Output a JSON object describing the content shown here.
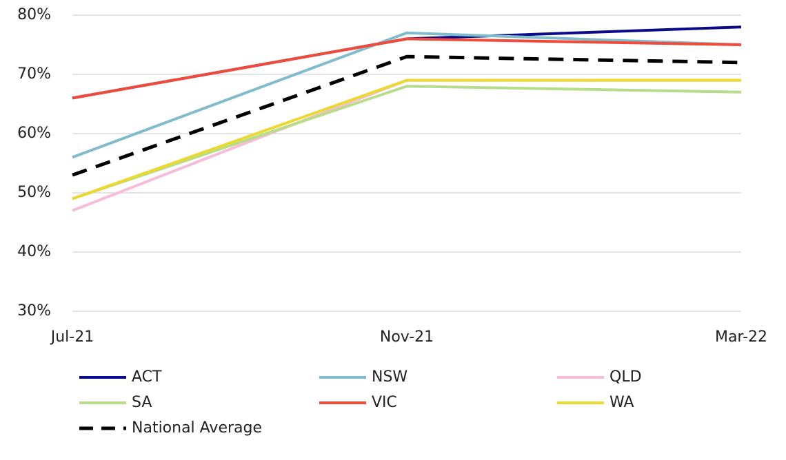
{
  "chart_data": {
    "type": "line",
    "categories": [
      "Jul-21",
      "Nov-21",
      "Mar-22"
    ],
    "series": [
      {
        "name": "ACT",
        "color": "#0b0b8a",
        "values": [
          66,
          76,
          78
        ]
      },
      {
        "name": "NSW",
        "color": "#80bccb",
        "values": [
          56,
          77,
          75
        ]
      },
      {
        "name": "QLD",
        "color": "#f6bcd9",
        "values": [
          47,
          69,
          69
        ]
      },
      {
        "name": "SA",
        "color": "#b7dc8c",
        "values": [
          49,
          68,
          67
        ]
      },
      {
        "name": "VIC",
        "color": "#ef4a3a",
        "values": [
          66,
          76,
          75
        ]
      },
      {
        "name": "WA",
        "color": "#ebd930",
        "values": [
          49,
          69,
          69
        ]
      },
      {
        "name": "National Average",
        "color": "#000000",
        "dashed": true,
        "values": [
          53,
          73,
          72
        ]
      }
    ],
    "ylim": [
      30,
      80
    ],
    "yticks": [
      {
        "value": 30,
        "label": "30%"
      },
      {
        "value": 40,
        "label": "40%"
      },
      {
        "value": 50,
        "label": "50%"
      },
      {
        "value": 60,
        "label": "60%"
      },
      {
        "value": 70,
        "label": "70%"
      },
      {
        "value": 80,
        "label": "80%"
      }
    ],
    "grid": true,
    "legend": "bottom"
  }
}
